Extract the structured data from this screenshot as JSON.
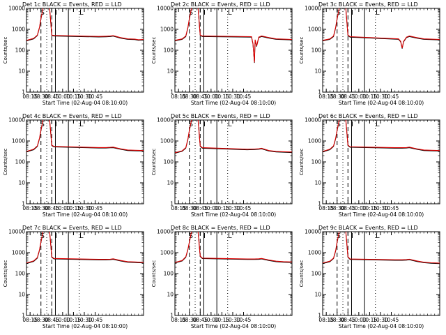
{
  "x_tick_labels": [
    "08:15",
    "08:30",
    "08:45",
    "10:00",
    "10:15",
    "10:30",
    "10:45"
  ],
  "y_tick_labels": [
    "1",
    "10",
    "100",
    "1000",
    "10000"
  ],
  "xlabel": "Start Time (02-Aug-04 08:10:00)",
  "ylabel": "Counts/sec",
  "marker_labels": [
    "S",
    "I",
    "L"
  ],
  "colors": {
    "events": "#000000",
    "lld": "#dd0000",
    "frame": "#000000",
    "background": "#ffffff"
  },
  "chart_data": [
    {
      "type": "line",
      "title": "Det 1c BLACK = Events, RED = LLD",
      "series": [
        {
          "name": "Events"
        },
        {
          "name": "LLD"
        }
      ],
      "x": [
        "08:10",
        "08:20",
        "08:25",
        "08:28",
        "08:30",
        "08:33",
        "08:42",
        "08:45",
        "08:48",
        "09:50",
        "10:00",
        "10:06",
        "10:10",
        "10:20",
        "10:30",
        "10:40",
        "10:45",
        "10:52"
      ],
      "values": [
        280,
        350,
        500,
        1200,
        3000,
        10000,
        10000,
        500,
        480,
        430,
        440,
        450,
        470,
        380,
        330,
        320,
        300,
        310
      ],
      "ylim": [
        1,
        10000
      ],
      "xlim": [
        "08:10",
        "10:52"
      ],
      "yscale": "log"
    },
    {
      "type": "line",
      "title": "Det 2c BLACK = Events, RED = LLD",
      "series": [
        {
          "name": "Events"
        },
        {
          "name": "LLD"
        }
      ],
      "x": [
        "08:10",
        "08:20",
        "08:25",
        "08:28",
        "08:30",
        "08:33",
        "08:42",
        "08:45",
        "08:48",
        "09:56",
        "09:58",
        "10:00",
        "10:01",
        "10:03",
        "10:06",
        "10:10",
        "10:20",
        "10:30",
        "10:40",
        "10:52"
      ],
      "values": [
        280,
        330,
        450,
        1200,
        3000,
        10000,
        10000,
        500,
        450,
        420,
        200,
        25,
        300,
        150,
        400,
        450,
        380,
        330,
        320,
        310
      ],
      "ylim": [
        1,
        10000
      ],
      "xlim": [
        "08:10",
        "10:52"
      ],
      "yscale": "log"
    },
    {
      "type": "line",
      "title": "Det 3c BLACK = Events, RED = LLD",
      "series": [
        {
          "name": "Events"
        },
        {
          "name": "LLD"
        }
      ],
      "x": [
        "08:10",
        "08:20",
        "08:25",
        "08:28",
        "08:30",
        "08:33",
        "08:42",
        "08:45",
        "08:48",
        "09:55",
        "09:58",
        "10:00",
        "10:02",
        "10:06",
        "10:10",
        "10:20",
        "10:30",
        "10:40",
        "10:52"
      ],
      "values": [
        280,
        330,
        450,
        1200,
        3000,
        10000,
        10000,
        500,
        420,
        330,
        250,
        120,
        250,
        400,
        450,
        380,
        330,
        320,
        310
      ],
      "ylim": [
        1,
        10000
      ],
      "xlim": [
        "08:10",
        "10:52"
      ],
      "yscale": "log"
    },
    {
      "type": "line",
      "title": "Det 4c BLACK = Events, RED = LLD",
      "series": [
        {
          "name": "Events"
        },
        {
          "name": "LLD"
        }
      ],
      "x": [
        "08:10",
        "08:20",
        "08:25",
        "08:28",
        "08:30",
        "08:33",
        "08:42",
        "08:45",
        "08:48",
        "09:50",
        "10:00",
        "10:06",
        "10:10",
        "10:20",
        "10:30",
        "10:40",
        "10:52"
      ],
      "values": [
        300,
        380,
        550,
        1300,
        3000,
        10000,
        10000,
        600,
        520,
        460,
        460,
        470,
        480,
        400,
        350,
        340,
        330
      ],
      "ylim": [
        1,
        10000
      ],
      "xlim": [
        "08:10",
        "10:52"
      ],
      "yscale": "log"
    },
    {
      "type": "line",
      "title": "Det 5c BLACK = Events, RED = LLD",
      "series": [
        {
          "name": "Events"
        },
        {
          "name": "LLD"
        }
      ],
      "x": [
        "08:10",
        "08:20",
        "08:25",
        "08:28",
        "08:30",
        "08:33",
        "08:42",
        "08:45",
        "08:48",
        "09:50",
        "10:00",
        "10:06",
        "10:10",
        "10:20",
        "10:30",
        "10:40",
        "10:52"
      ],
      "values": [
        260,
        320,
        450,
        1200,
        3000,
        10000,
        10000,
        550,
        450,
        380,
        390,
        400,
        420,
        330,
        300,
        290,
        280
      ],
      "ylim": [
        1,
        10000
      ],
      "xlim": [
        "08:10",
        "10:52"
      ],
      "yscale": "log"
    },
    {
      "type": "line",
      "title": "Det 6c BLACK = Events, RED = LLD",
      "series": [
        {
          "name": "Events"
        },
        {
          "name": "LLD"
        }
      ],
      "x": [
        "08:10",
        "08:20",
        "08:25",
        "08:28",
        "08:30",
        "08:33",
        "08:42",
        "08:45",
        "08:48",
        "09:50",
        "10:00",
        "10:06",
        "10:10",
        "10:20",
        "10:30",
        "10:40",
        "10:52"
      ],
      "values": [
        300,
        380,
        550,
        1300,
        3000,
        10000,
        10000,
        600,
        500,
        450,
        450,
        460,
        480,
        400,
        350,
        340,
        330
      ],
      "ylim": [
        1,
        10000
      ],
      "xlim": [
        "08:10",
        "10:52"
      ],
      "yscale": "log"
    },
    {
      "type": "line",
      "title": "Det 7c BLACK = Events, RED = LLD",
      "series": [
        {
          "name": "Events"
        },
        {
          "name": "LLD"
        }
      ],
      "x": [
        "08:10",
        "08:20",
        "08:25",
        "08:28",
        "08:30",
        "08:33",
        "08:42",
        "08:45",
        "08:48",
        "09:50",
        "10:00",
        "10:06",
        "10:10",
        "10:20",
        "10:30",
        "10:40",
        "10:52"
      ],
      "values": [
        300,
        380,
        550,
        1300,
        3000,
        10000,
        10000,
        600,
        500,
        450,
        450,
        460,
        480,
        400,
        350,
        340,
        320
      ],
      "ylim": [
        1,
        10000
      ],
      "xlim": [
        "08:10",
        "10:52"
      ],
      "yscale": "log"
    },
    {
      "type": "line",
      "title": "Det 8c BLACK = Events, RED = LLD",
      "series": [
        {
          "name": "Events"
        },
        {
          "name": "LLD"
        }
      ],
      "x": [
        "08:10",
        "08:20",
        "08:25",
        "08:28",
        "08:30",
        "08:33",
        "08:42",
        "08:45",
        "08:48",
        "09:50",
        "10:00",
        "10:06",
        "10:10",
        "10:20",
        "10:30",
        "10:40",
        "10:52"
      ],
      "values": [
        320,
        400,
        600,
        1400,
        3000,
        10000,
        10000,
        650,
        520,
        470,
        470,
        480,
        500,
        420,
        370,
        350,
        340
      ],
      "ylim": [
        1,
        10000
      ],
      "xlim": [
        "08:10",
        "10:52"
      ],
      "yscale": "log"
    },
    {
      "type": "line",
      "title": "Det 9c BLACK = Events, RED = LLD",
      "series": [
        {
          "name": "Events"
        },
        {
          "name": "LLD"
        }
      ],
      "x": [
        "08:10",
        "08:20",
        "08:25",
        "08:28",
        "08:30",
        "08:33",
        "08:42",
        "08:45",
        "08:48",
        "09:50",
        "10:00",
        "10:06",
        "10:10",
        "10:20",
        "10:30",
        "10:40",
        "10:52"
      ],
      "values": [
        300,
        370,
        520,
        1200,
        3000,
        10000,
        10000,
        600,
        470,
        430,
        430,
        440,
        460,
        380,
        330,
        310,
        300
      ],
      "ylim": [
        1,
        10000
      ],
      "xlim": [
        "08:10",
        "10:52"
      ],
      "yscale": "log"
    }
  ]
}
